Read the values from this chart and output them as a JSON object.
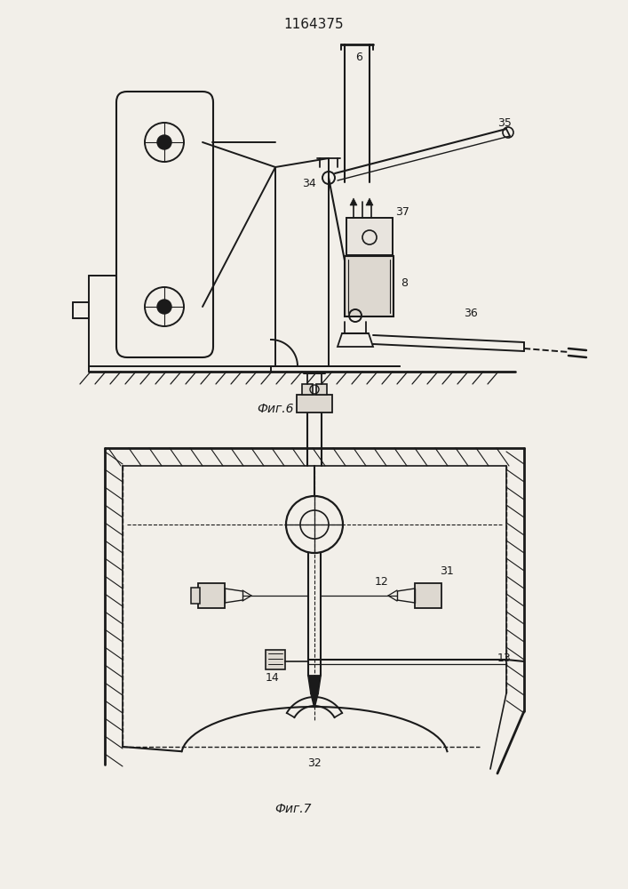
{
  "title": "1164375",
  "fig6_label": "Фиг.6",
  "fig7_label": "Фиг.7",
  "bg_color": "#f2efe9",
  "lc": "#1a1a1a"
}
